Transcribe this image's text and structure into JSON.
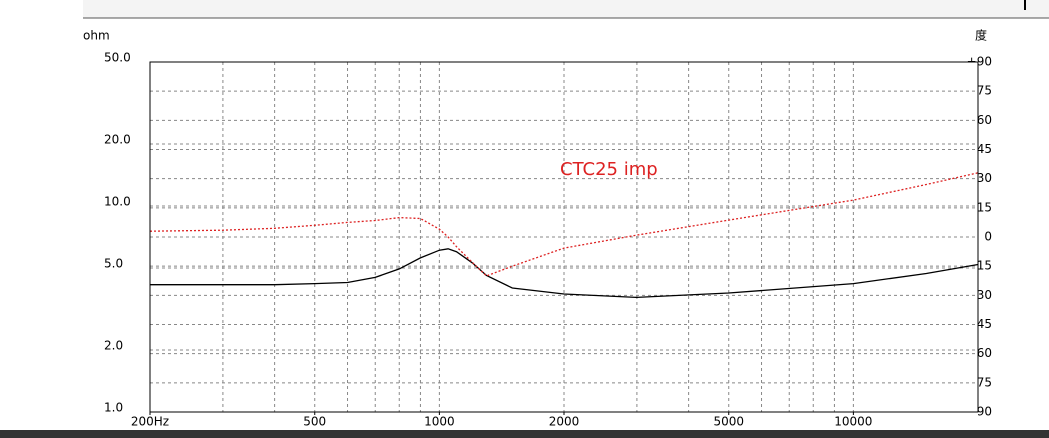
{
  "chart_data": {
    "type": "line",
    "y_label": "ohm",
    "y2_label": "度",
    "annotation": "CTC25 imp",
    "xscale": "log",
    "yscale": "log",
    "xlim": [
      200,
      20000
    ],
    "xticks": [
      {
        "value": 200,
        "label": "200Hz"
      },
      500,
      1000,
      2000,
      5000,
      10000
    ],
    "xgrid": [
      300,
      400,
      500,
      600,
      700,
      800,
      900,
      1000,
      2000,
      3000,
      4000,
      5000,
      6000,
      7000,
      8000,
      9000,
      10000,
      20000
    ],
    "ylim": [
      1,
      50
    ],
    "yticks": [
      {
        "value": 1,
        "label": "1.0"
      },
      {
        "value": 2,
        "label": "2.0"
      },
      {
        "value": 5,
        "label": "5.0"
      },
      {
        "value": 10,
        "label": "10.0"
      },
      {
        "value": 20,
        "label": "20.0"
      },
      {
        "value": 50,
        "label": "50.0"
      }
    ],
    "y2lim": [
      -90,
      90
    ],
    "y2ticks": [
      -90,
      -75,
      -60,
      -45,
      -30,
      -15,
      0,
      15,
      30,
      45,
      60,
      75,
      {
        "value": 90,
        "label": "+90"
      }
    ],
    "grid": true,
    "x": [
      200,
      300,
      400,
      500,
      600,
      700,
      800,
      900,
      1000,
      1050,
      1100,
      1200,
      1300,
      1500,
      2000,
      3000,
      5000,
      10000,
      15000,
      20000
    ],
    "series": [
      {
        "name": "ohm",
        "color": "#000000",
        "dash": false,
        "values": [
          4.15,
          4.15,
          4.15,
          4.2,
          4.25,
          4.5,
          4.95,
          5.6,
          6.1,
          6.2,
          6.0,
          5.3,
          4.6,
          4.0,
          3.74,
          3.6,
          3.78,
          4.2,
          4.7,
          5.2
        ]
      },
      {
        "name": "度",
        "color": "#dd2222",
        "dash": true,
        "axis": "y2",
        "values": [
          3,
          3.5,
          4.5,
          6,
          7.5,
          8.5,
          10,
          9.5,
          4,
          0,
          -5,
          -13,
          -20,
          -15,
          -5.7,
          1,
          8.7,
          19,
          27,
          33
        ]
      }
    ]
  }
}
